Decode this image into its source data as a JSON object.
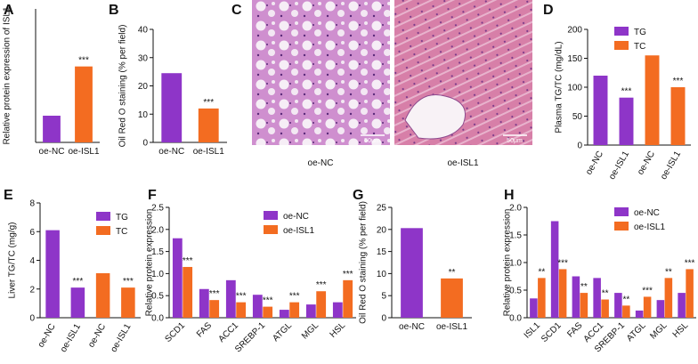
{
  "panel_labels": [
    "A",
    "B",
    "C",
    "D",
    "E",
    "F",
    "G",
    "H"
  ],
  "image_panel": {
    "labels": [
      "oe-NC",
      "oe-ISL1"
    ],
    "scale_bars": [
      "50μm",
      "50μm"
    ]
  },
  "chart_data": [
    {
      "type": "bar",
      "ylabel": "Relative protein expression of ISL1",
      "categories": [
        "oe-NC",
        "oe-ISL1"
      ],
      "values": [
        0.45,
        1.28
      ],
      "colors": [
        "#8e35c8",
        "#f36c21"
      ],
      "ylim": [
        0,
        2.25
      ],
      "significance": [
        null,
        "***"
      ]
    },
    {
      "type": "bar",
      "ylabel": "Oil Red O staining (% per field)",
      "categories": [
        "oe-NC",
        "oe-ISL1"
      ],
      "values": [
        24.5,
        12
      ],
      "colors": [
        "#8e35c8",
        "#f36c21"
      ],
      "ylim": [
        0,
        40
      ],
      "yticks": [
        0,
        10,
        20,
        30,
        40
      ],
      "significance": [
        null,
        "***"
      ]
    },
    {
      "type": "bar",
      "ylabel": "Plasma TG/TC (mg/dL)",
      "categories": [
        "oe-NC",
        "oe-ISL1",
        "oe-NC",
        "oe-ISL1"
      ],
      "series": [
        {
          "name": "TG",
          "color": "#8e35c8",
          "values": [
            120,
            82,
            null,
            null
          ]
        },
        {
          "name": "TC",
          "color": "#f36c21",
          "values": [
            null,
            null,
            155,
            100
          ]
        }
      ],
      "ylim": [
        0,
        200
      ],
      "yticks": [
        0,
        50,
        100,
        150,
        200
      ],
      "significance": [
        null,
        "***",
        null,
        "***"
      ],
      "legend": "top-left"
    },
    {
      "type": "bar",
      "ylabel": "Liver TG/TC (mg/g)",
      "categories": [
        "oe-NC",
        "oe-ISL1",
        "oe-NC",
        "oe-ISL1"
      ],
      "series": [
        {
          "name": "TG",
          "color": "#8e35c8",
          "values": [
            6.1,
            2.1,
            null,
            null
          ]
        },
        {
          "name": "TC",
          "color": "#f36c21",
          "values": [
            null,
            null,
            3.1,
            2.1
          ]
        }
      ],
      "ylim": [
        0,
        8
      ],
      "yticks": [
        0,
        2,
        4,
        6,
        8
      ],
      "significance": [
        null,
        "***",
        null,
        "***"
      ],
      "legend": "top-right"
    },
    {
      "type": "bar",
      "ylabel": "Relative protein expression",
      "categories": [
        "SCD1",
        "FAS",
        "ACC1",
        "SREBP-1",
        "ATGL",
        "MGL",
        "HSL"
      ],
      "series": [
        {
          "name": "oe-NC",
          "color": "#8e35c8",
          "values": [
            1.8,
            0.65,
            0.85,
            0.52,
            0.18,
            0.3,
            0.35
          ]
        },
        {
          "name": "oe-ISL1",
          "color": "#f36c21",
          "values": [
            1.15,
            0.4,
            0.35,
            0.25,
            0.35,
            0.6,
            0.85
          ]
        }
      ],
      "ylim": [
        0,
        2.5
      ],
      "yticks": [
        {
          "value": 0,
          "label": "0.0"
        },
        0.5,
        {
          "value": 1,
          "label": "1.0"
        },
        1.5,
        {
          "value": 2,
          "label": "2.0"
        },
        2.5
      ],
      "significance": [
        "***",
        "***",
        "***",
        "***",
        "***",
        "***",
        "***"
      ],
      "legend": "top-right"
    },
    {
      "type": "bar",
      "ylabel": "Oil Red O staining (% per field)",
      "categories": [
        "oe-NC",
        "oe-ISL1"
      ],
      "values": [
        20.3,
        8.9
      ],
      "colors": [
        "#8e35c8",
        "#f36c21"
      ],
      "ylim": [
        0,
        25
      ],
      "yticks": [
        0,
        5,
        10,
        15,
        20,
        25
      ],
      "significance": [
        null,
        "**"
      ]
    },
    {
      "type": "bar",
      "ylabel": "Relative protein expression",
      "categories": [
        "ISL1",
        "SCD1",
        "FAS",
        "ACC1",
        "SREBP-1",
        "ATGL",
        "MGL",
        "HSL"
      ],
      "series": [
        {
          "name": "oe-NC",
          "color": "#8e35c8",
          "values": [
            0.35,
            1.75,
            0.75,
            0.72,
            0.45,
            0.13,
            0.32,
            0.45
          ]
        },
        {
          "name": "oe-ISL1",
          "color": "#f36c21",
          "values": [
            0.72,
            0.88,
            0.45,
            0.33,
            0.22,
            0.38,
            0.72,
            0.88
          ]
        }
      ],
      "ylim": [
        0,
        2
      ],
      "yticks": [
        {
          "value": 0,
          "label": "0.0"
        },
        0.5,
        {
          "value": 1,
          "label": "1.0"
        },
        1.5,
        {
          "value": 2,
          "label": "2.0"
        }
      ],
      "significance": [
        "**",
        "***",
        "**",
        "**",
        "**",
        "***",
        "**",
        "***"
      ],
      "legend": "top-right"
    }
  ]
}
